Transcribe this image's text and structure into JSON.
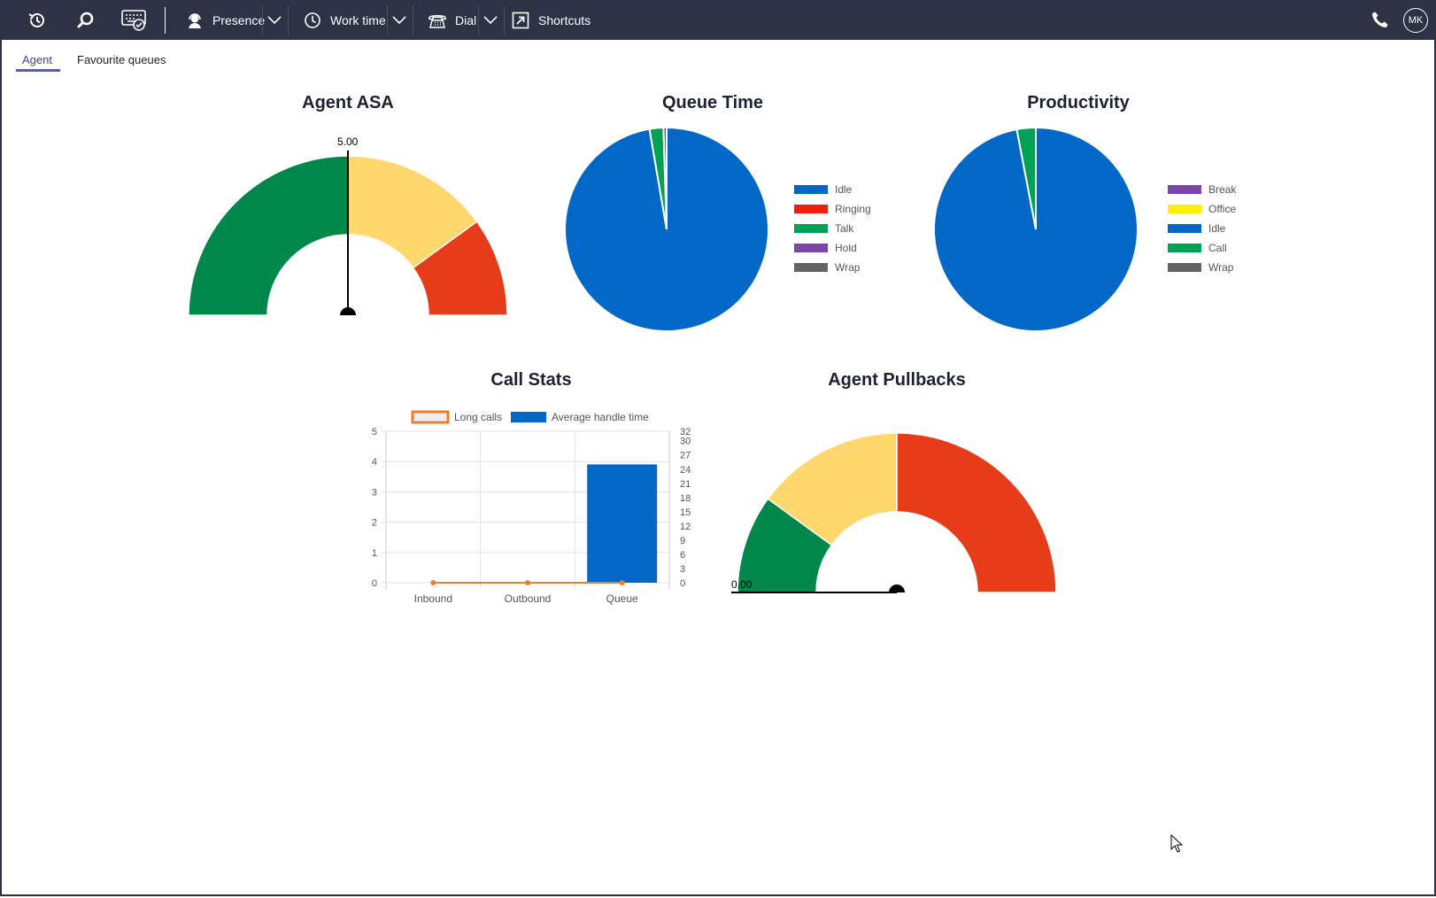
{
  "toolbar": {
    "history_icon": "history-icon",
    "search_icon": "search-icon",
    "keyboard_icon": "keyboard-check-icon",
    "presence_label": "Presence",
    "worktime_label": "Work time",
    "dial_label": "Dial",
    "shortcuts_label": "Shortcuts",
    "avatar_initials": "MK"
  },
  "tabs": [
    {
      "label": "Agent",
      "active": true
    },
    {
      "label": "Favourite queues",
      "active": false
    }
  ],
  "charts": {
    "agent_asa": {
      "title": "Agent ASA",
      "value_label": "5.00",
      "segments": [
        {
          "color": "#00884a",
          "fraction": 0.5
        },
        {
          "color": "#fed86c",
          "fraction": 0.3
        },
        {
          "color": "#e63c1a",
          "fraction": 0.2
        }
      ]
    },
    "queue_time": {
      "title": "Queue Time",
      "legend": [
        {
          "label": "Idle",
          "color": "#0168c7"
        },
        {
          "label": "Ringing",
          "color": "#f41c0a"
        },
        {
          "label": "Talk",
          "color": "#00a055"
        },
        {
          "label": "Hold",
          "color": "#7c45a8"
        },
        {
          "label": "Wrap",
          "color": "#646464"
        }
      ]
    },
    "productivity": {
      "title": "Productivity",
      "legend": [
        {
          "label": "Break",
          "color": "#7c45a8"
        },
        {
          "label": "Office",
          "color": "#ffee00"
        },
        {
          "label": "Idle",
          "color": "#0168c7"
        },
        {
          "label": "Call",
          "color": "#00a055"
        },
        {
          "label": "Wrap",
          "color": "#646464"
        }
      ]
    },
    "call_stats": {
      "title": "Call Stats",
      "legend": [
        {
          "label": "Long calls",
          "color": "#ed7d31"
        },
        {
          "label": "Average handle time",
          "color": "#0168c7"
        }
      ]
    },
    "agent_pullbacks": {
      "title": "Agent Pullbacks",
      "value_label": "0.00",
      "segments": [
        {
          "color": "#00884a",
          "fraction": 0.2
        },
        {
          "color": "#fed86c",
          "fraction": 0.3
        },
        {
          "color": "#e63c1a",
          "fraction": 0.5
        }
      ]
    }
  },
  "chart_data": [
    {
      "type": "gauge",
      "title": "Agent ASA",
      "value": 5.0,
      "range": [
        0,
        10
      ],
      "bands": [
        {
          "from": 0,
          "to": 5,
          "color": "#00884a"
        },
        {
          "from": 5,
          "to": 8,
          "color": "#fed86c"
        },
        {
          "from": 8,
          "to": 10,
          "color": "#e63c1a"
        }
      ]
    },
    {
      "type": "pie",
      "title": "Queue Time",
      "labels": [
        "Idle",
        "Ringing",
        "Talk",
        "Hold",
        "Wrap"
      ],
      "values": [
        97.3,
        0,
        2.2,
        0,
        0.5
      ],
      "colors": [
        "#0168c7",
        "#f41c0a",
        "#00a055",
        "#7c45a8",
        "#646464"
      ],
      "legend": "right"
    },
    {
      "type": "pie",
      "title": "Productivity",
      "labels": [
        "Break",
        "Office",
        "Idle",
        "Call",
        "Wrap"
      ],
      "values": [
        0,
        0,
        97,
        3,
        0
      ],
      "colors": [
        "#7c45a8",
        "#ffee00",
        "#0168c7",
        "#00a055",
        "#646464"
      ],
      "legend": "right"
    },
    {
      "type": "bar",
      "title": "Call Stats",
      "categories": [
        "Inbound",
        "Outbound",
        "Queue"
      ],
      "series": [
        {
          "name": "Long calls",
          "type": "line",
          "axis": "left",
          "values": [
            0,
            0,
            0
          ],
          "color": "#ed7d31"
        },
        {
          "name": "Average handle time",
          "type": "bar",
          "axis": "right",
          "values": [
            0,
            0,
            25
          ],
          "color": "#0168c7"
        }
      ],
      "y_left": {
        "ticks": [
          "0",
          "1",
          "2",
          "3",
          "4",
          "5"
        ],
        "range": [
          0,
          5
        ]
      },
      "y_right": {
        "ticks": [
          "0",
          "3",
          "6",
          "9",
          "12",
          "15",
          "18",
          "21",
          "24",
          "27",
          "30",
          "32"
        ],
        "range": [
          0,
          32
        ]
      },
      "legend": "top",
      "grid": true
    },
    {
      "type": "gauge",
      "title": "Agent Pullbacks",
      "value": 0.0,
      "range": [
        0,
        10
      ],
      "bands": [
        {
          "from": 0,
          "to": 2,
          "color": "#00884a"
        },
        {
          "from": 2,
          "to": 5,
          "color": "#fed86c"
        },
        {
          "from": 5,
          "to": 10,
          "color": "#e63c1a"
        }
      ]
    }
  ]
}
